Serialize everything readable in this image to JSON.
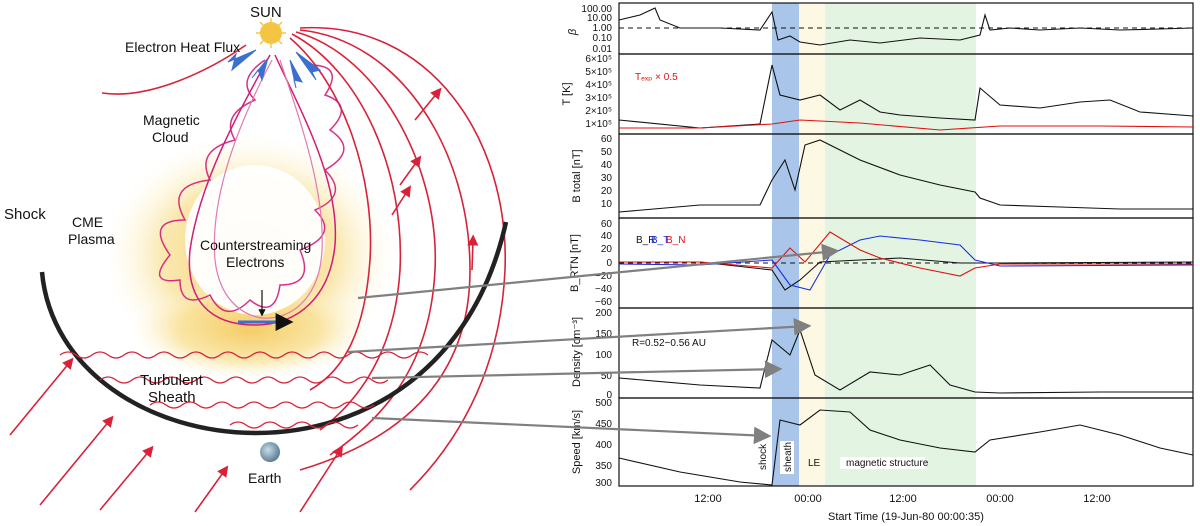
{
  "diagram": {
    "sun_label": "SUN",
    "heat_flux_label": "Electron Heat Flux",
    "magnetic_cloud_label": [
      "Magnetic",
      "Cloud"
    ],
    "shock_label": "Shock",
    "cme_plasma_label": [
      "CME",
      "Plasma"
    ],
    "counterstreaming_label": [
      "Counterstreaming",
      "Electrons"
    ],
    "sheath_label": [
      "Turbulent",
      "Sheath"
    ],
    "earth_label": "Earth"
  },
  "plot": {
    "x_title": "Start Time (19-Jun-80 00:00:35)",
    "x_ticks": [
      "12:00",
      "00:00",
      "12:00",
      "00:00",
      "12:00"
    ],
    "regions": [
      "shock",
      "sheath",
      "LE",
      "magnetic structure"
    ],
    "colors": {
      "sheath_band": "#a9c6ea",
      "le_band": "#fdf8e4",
      "mag_band": "#e3f4e3",
      "red": "#e01010",
      "blue": "#1530e0"
    },
    "panels": [
      {
        "ylabel": "β",
        "ticks": [
          "100.00",
          "10.00",
          "1.00",
          "0.10",
          "0.01"
        ]
      },
      {
        "ylabel": "T [K]",
        "ticks": [
          "6×10⁵",
          "5×10⁵",
          "4×10⁵",
          "3×10⁵",
          "2×10⁵",
          "1×10⁵"
        ],
        "legend": "Tₑₓₚ × 0.5"
      },
      {
        "ylabel": "B total [nT]",
        "ticks": [
          "60",
          "50",
          "40",
          "30",
          "20",
          "10"
        ]
      },
      {
        "ylabel": "B_RTN [nT]",
        "ticks": [
          "60",
          "40",
          "20",
          "0",
          "−20",
          "−40",
          "−60"
        ],
        "legend": [
          "B_R",
          "B_T",
          "B_N"
        ]
      },
      {
        "ylabel": "Density [cm⁻³]",
        "ticks": [
          "200",
          "150",
          "100",
          "50",
          "0"
        ],
        "annotation": "R=0.52−0.56 AU"
      },
      {
        "ylabel": "Speed [km/s]",
        "ticks": [
          "500",
          "450",
          "400",
          "350",
          "300"
        ]
      }
    ]
  }
}
